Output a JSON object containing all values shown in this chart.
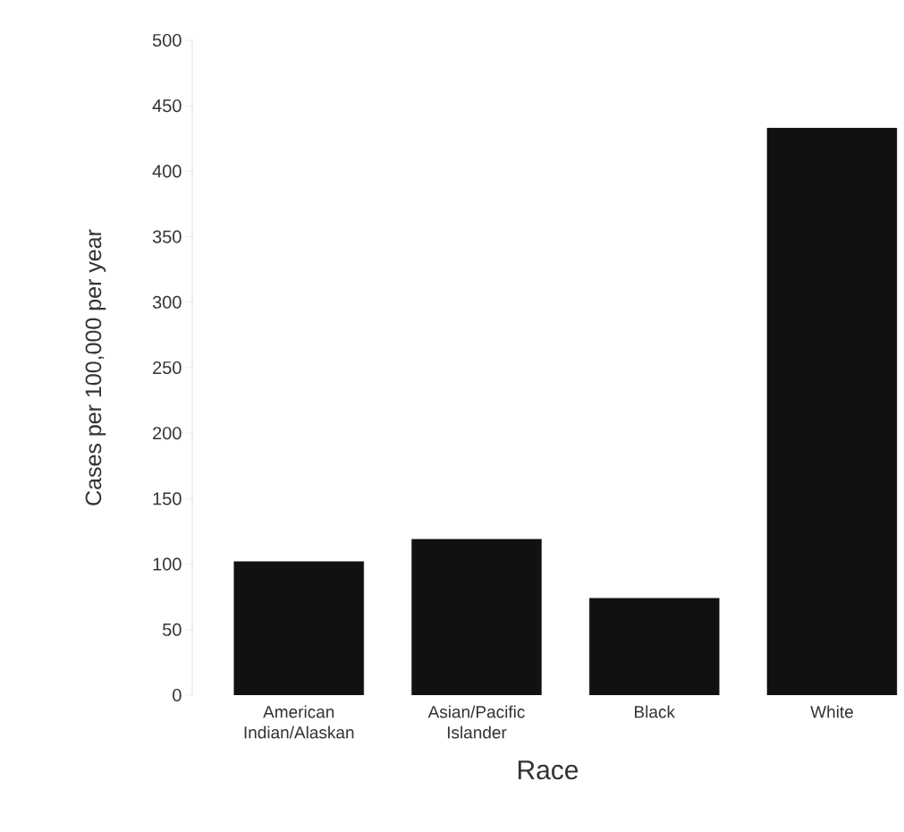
{
  "chart_data": {
    "type": "bar",
    "xlabel": "Race",
    "ylabel": "Cases per 100,000 per year",
    "categories": [
      "American Indian/Alaskan",
      "Asian/Pacific Islander",
      "Black",
      "White"
    ],
    "values": [
      102,
      119,
      74,
      433
    ],
    "color": "#111111",
    "ylim": [
      0,
      500
    ],
    "yticks": [
      0,
      50,
      100,
      150,
      200,
      250,
      300,
      350,
      400,
      450,
      500
    ],
    "grid": false
  }
}
